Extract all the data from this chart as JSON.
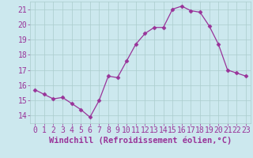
{
  "x": [
    0,
    1,
    2,
    3,
    4,
    5,
    6,
    7,
    8,
    9,
    10,
    11,
    12,
    13,
    14,
    15,
    16,
    17,
    18,
    19,
    20,
    21,
    22,
    23
  ],
  "y": [
    15.7,
    15.4,
    15.1,
    15.2,
    14.8,
    14.4,
    13.9,
    15.0,
    16.6,
    16.5,
    17.6,
    18.7,
    19.4,
    19.8,
    19.8,
    21.0,
    21.2,
    20.9,
    20.8,
    19.9,
    18.7,
    17.0,
    16.8,
    16.6
  ],
  "line_color": "#993399",
  "marker": "D",
  "marker_size": 2.5,
  "bg_color": "#cce8ee",
  "grid_color": "#aacccc",
  "xlabel": "Windchill (Refroidissement éolien,°C)",
  "ylim": [
    13.5,
    21.5
  ],
  "xlim": [
    -0.5,
    23.5
  ],
  "yticks": [
    14,
    15,
    16,
    17,
    18,
    19,
    20,
    21
  ],
  "xticks": [
    0,
    1,
    2,
    3,
    4,
    5,
    6,
    7,
    8,
    9,
    10,
    11,
    12,
    13,
    14,
    15,
    16,
    17,
    18,
    19,
    20,
    21,
    22,
    23
  ],
  "tick_color": "#993399",
  "label_color": "#993399",
  "tick_fontsize": 7,
  "xlabel_fontsize": 7.5
}
